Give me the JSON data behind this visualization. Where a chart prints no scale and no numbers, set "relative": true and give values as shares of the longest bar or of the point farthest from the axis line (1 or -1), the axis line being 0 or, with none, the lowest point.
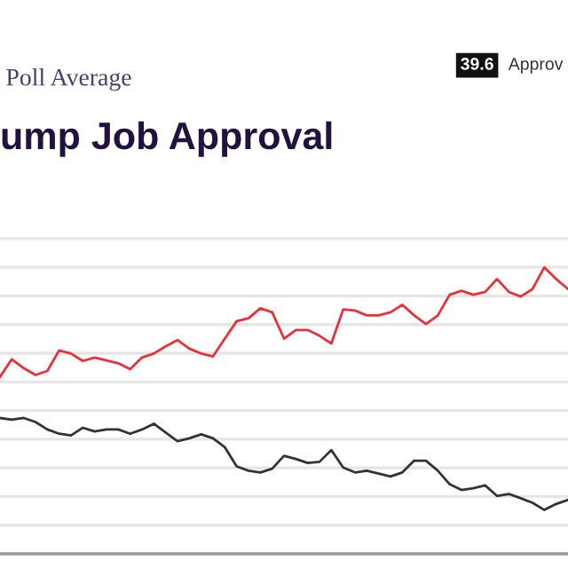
{
  "chart_data": {
    "type": "line",
    "relative": true,
    "subtitle": "Poll Average",
    "title": "ump Job Approval",
    "annotations": [
      "39.6"
    ],
    "categories": [
      null,
      null,
      null,
      null,
      null,
      null,
      null,
      null,
      null,
      null,
      null,
      null,
      null,
      null,
      null,
      null,
      null,
      null,
      null,
      null,
      null,
      null,
      null,
      null,
      null,
      null,
      null,
      null,
      null,
      null,
      null,
      null,
      null,
      null,
      null,
      null,
      null,
      null,
      null,
      null,
      null,
      null,
      null,
      null,
      null,
      null,
      null,
      null,
      null
    ],
    "series": [
      {
        "color": "#e8313a",
        "values": [
          0.618,
          0.679,
          0.648,
          0.624,
          0.638,
          0.71,
          0.699,
          0.673,
          0.685,
          0.675,
          0.665,
          0.644,
          0.685,
          0.699,
          0.724,
          0.746,
          0.716,
          0.699,
          0.689,
          0.751,
          0.812,
          0.822,
          0.857,
          0.843,
          0.751,
          0.781,
          0.781,
          0.761,
          0.734,
          0.853,
          0.849,
          0.832,
          0.832,
          0.843,
          0.869,
          0.832,
          0.802,
          0.832,
          0.904,
          0.918,
          0.904,
          0.914,
          0.959,
          0.914,
          0.898,
          0.924,
          1,
          0.959,
          0.924
        ]
      },
      {
        "name": "Approv",
        "color": "#333333",
        "values": [
          0.474,
          0.468,
          0.474,
          0.46,
          0.434,
          0.419,
          0.413,
          0.44,
          0.427,
          0.434,
          0.434,
          0.419,
          0.434,
          0.454,
          0.423,
          0.393,
          0.403,
          0.417,
          0.403,
          0.372,
          0.305,
          0.29,
          0.284,
          0.297,
          0.342,
          0.331,
          0.317,
          0.321,
          0.362,
          0.301,
          0.284,
          0.29,
          0.28,
          0.27,
          0.284,
          0.325,
          0.325,
          0.29,
          0.243,
          0.223,
          0.229,
          0.239,
          0.202,
          0.209,
          0.194,
          0.178,
          0.153,
          0.174,
          0.188
        ]
      }
    ],
    "grid": "y",
    "legend": "top right",
    "marker": "none",
    "line_style": "solid"
  }
}
